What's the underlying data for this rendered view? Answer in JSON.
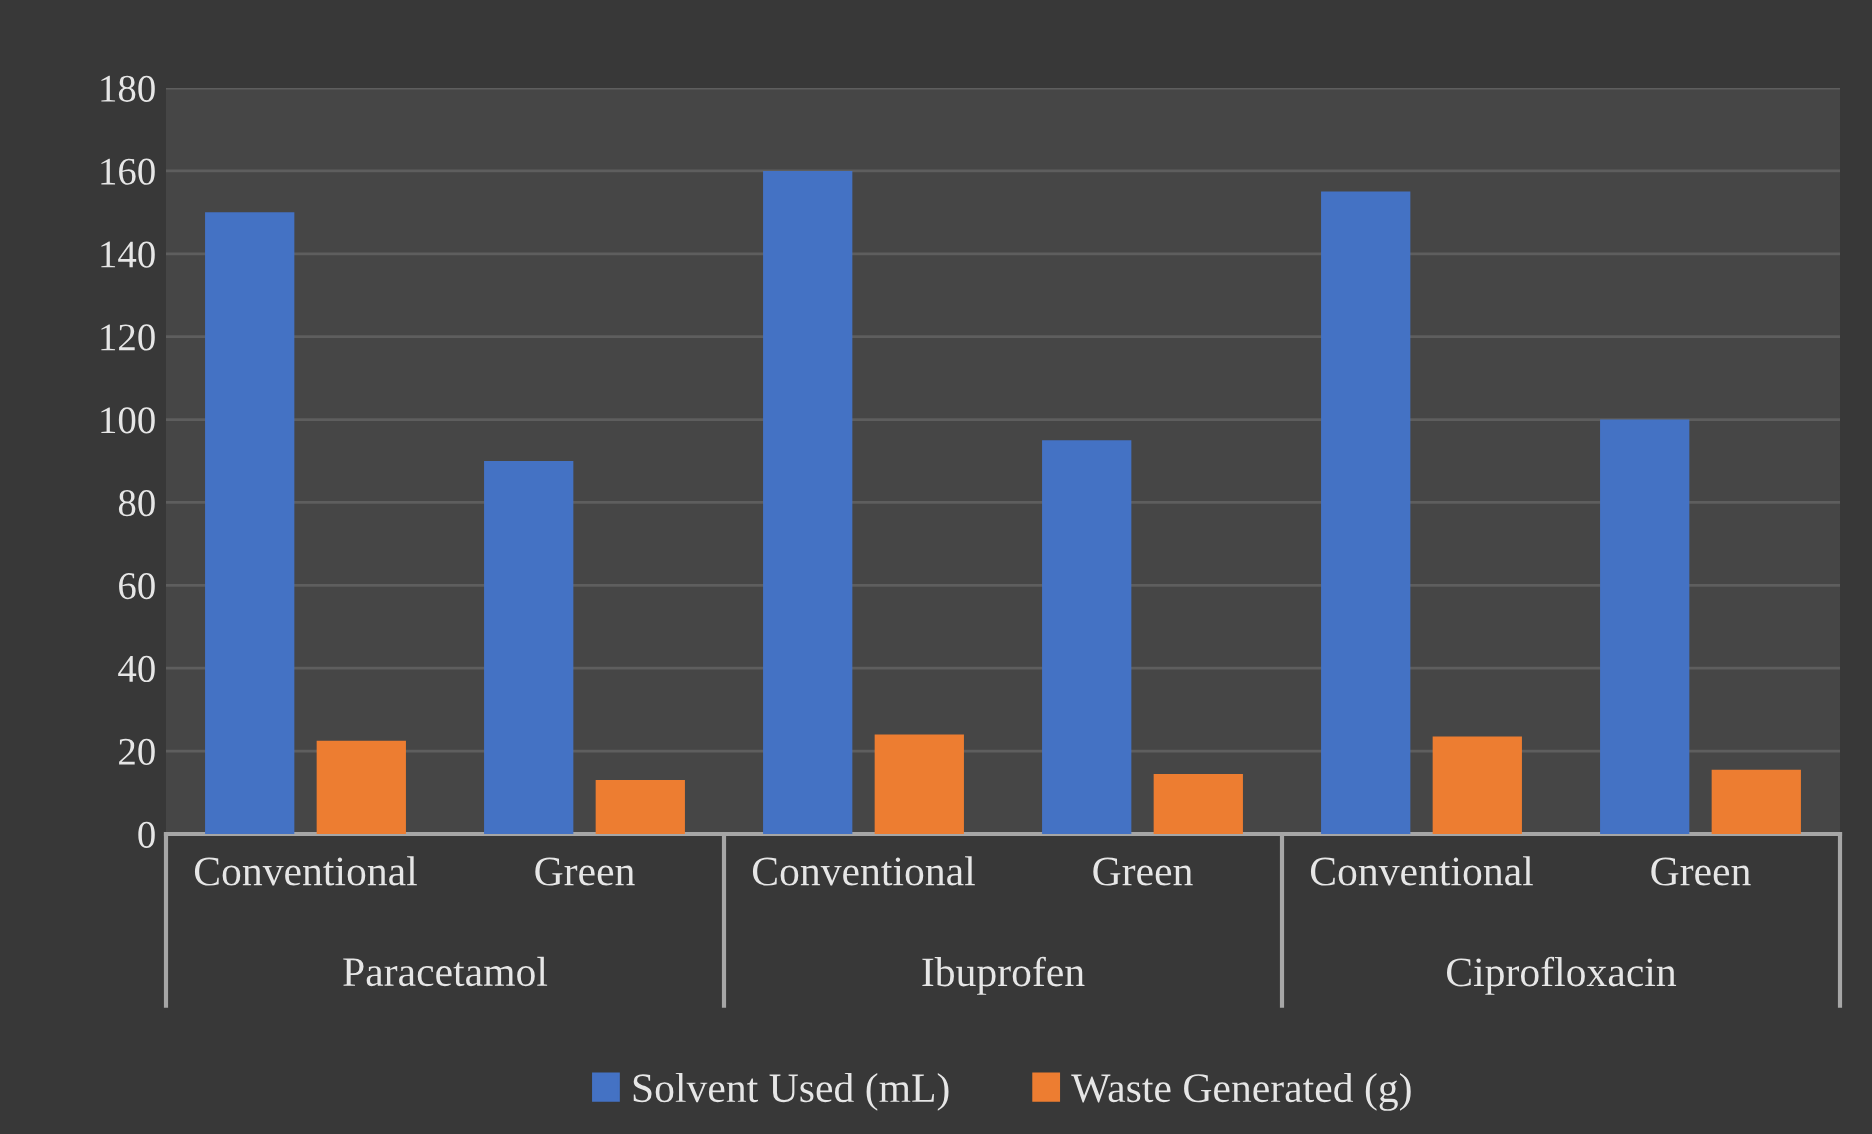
{
  "chart_data": {
    "type": "bar",
    "categories": [
      "Conventional",
      "Green",
      "Conventional",
      "Green",
      "Conventional",
      "Green"
    ],
    "annotations": [
      "Paracetamol",
      "Ibuprofen",
      "Ciprofloxacin"
    ],
    "series": [
      {
        "name": "Solvent Used (mL)",
        "color": "#4472c4",
        "values": [
          150,
          90,
          160,
          95,
          155,
          100
        ]
      },
      {
        "name": "Waste Generated (g)",
        "color": "#ed7d31",
        "values": [
          22.5,
          13,
          24,
          14.5,
          23.5,
          15.5
        ]
      }
    ],
    "ylim": [
      0,
      180
    ],
    "yticks": [
      0,
      20,
      40,
      60,
      80,
      100,
      120,
      140,
      160,
      180
    ],
    "grid": "y",
    "legend": "bottom"
  }
}
